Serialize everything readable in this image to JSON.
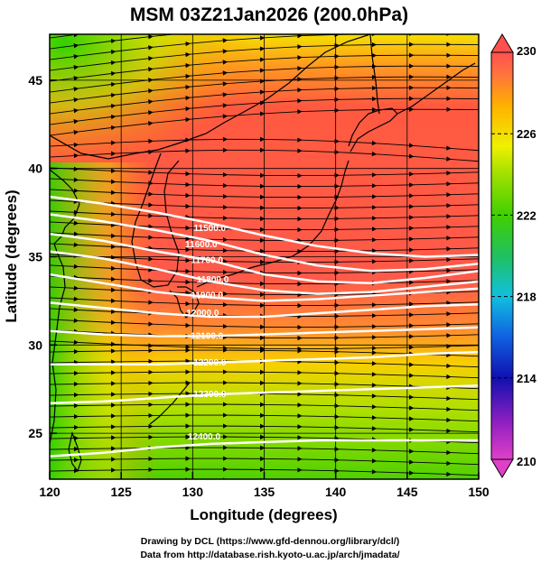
{
  "title": "MSM 03Z21Jan2026 (200.0hPa)",
  "map": {
    "xlabel": "Longitude (degrees)",
    "ylabel": "Latitude  (degrees)",
    "lon_range": [
      120,
      150
    ],
    "lat_range": [
      22.4,
      47.6
    ],
    "x_ticks": [
      "120",
      "125",
      "130",
      "135",
      "140",
      "145",
      "150"
    ],
    "y_ticks": [
      "25",
      "30",
      "35",
      "40",
      "45"
    ],
    "grid": true
  },
  "colorbar": {
    "range": [
      210,
      230
    ],
    "ticks": [
      "230",
      "226",
      "222",
      "218",
      "214",
      "210"
    ],
    "stops": [
      "#e040c8",
      "#9020c0",
      "#1010b0",
      "#1060e0",
      "#10c0e0",
      "#20c060",
      "#40d000",
      "#a0e000",
      "#f0f000",
      "#ffb000",
      "#ff7040",
      "#ff5050"
    ]
  },
  "contours": {
    "color": "#ffffff",
    "labels": [
      {
        "text": "11500.0",
        "lon": 131.2,
        "lat": 36.6
      },
      {
        "text": "11600.0",
        "lon": 130.6,
        "lat": 35.7
      },
      {
        "text": "11700.0",
        "lon": 131.0,
        "lat": 34.8
      },
      {
        "text": "11800.0",
        "lon": 131.4,
        "lat": 33.7
      },
      {
        "text": "11900.0",
        "lon": 131.0,
        "lat": 32.8
      },
      {
        "text": "12000.0",
        "lon": 130.7,
        "lat": 31.8
      },
      {
        "text": "12100.0",
        "lon": 131.0,
        "lat": 30.5
      },
      {
        "text": "12200.0",
        "lon": 131.2,
        "lat": 29.0
      },
      {
        "text": "12300.0",
        "lon": 131.2,
        "lat": 27.2
      },
      {
        "text": "12400.0",
        "lon": 130.8,
        "lat": 24.8
      }
    ],
    "lines": [
      {
        "lats": [
          38.4,
          38.0,
          37.5,
          36.9,
          36.2,
          35.6,
          35.2,
          35.0,
          35.1
        ]
      },
      {
        "lats": [
          37.4,
          37.0,
          36.5,
          35.9,
          35.1,
          34.5,
          34.2,
          34.3,
          34.6
        ]
      },
      {
        "lats": [
          36.3,
          35.9,
          35.3,
          34.8,
          34.0,
          33.6,
          33.5,
          33.8,
          34.2
        ]
      },
      {
        "lats": [
          35.3,
          34.9,
          34.3,
          33.6,
          33.1,
          32.9,
          33.0,
          33.3,
          33.6
        ]
      },
      {
        "lats": [
          34.0,
          33.5,
          33.0,
          32.7,
          32.5,
          32.6,
          32.8,
          33.0,
          33.2
        ]
      },
      {
        "lats": [
          32.4,
          32.1,
          31.8,
          31.6,
          31.6,
          31.8,
          32.0,
          32.2,
          32.3
        ]
      },
      {
        "lats": [
          30.8,
          30.6,
          30.5,
          30.5,
          30.6,
          30.7,
          30.8,
          30.9,
          31.0
        ]
      },
      {
        "lats": [
          28.9,
          28.9,
          28.9,
          29.0,
          29.1,
          29.2,
          29.3,
          29.5,
          29.6
        ]
      },
      {
        "lats": [
          26.7,
          26.8,
          27.0,
          27.2,
          27.3,
          27.4,
          27.5,
          27.6,
          27.7
        ]
      },
      {
        "lats": [
          23.7,
          23.9,
          24.2,
          24.4,
          24.5,
          24.6,
          24.6,
          24.6,
          24.6
        ]
      }
    ]
  },
  "credits": {
    "line1": "Drawing by DCL (https://www.gfd-dennou.org/library/dcl/)",
    "line2": "Data from http://database.rish.kyoto-u.ac.jp/arch/jmadata/"
  }
}
